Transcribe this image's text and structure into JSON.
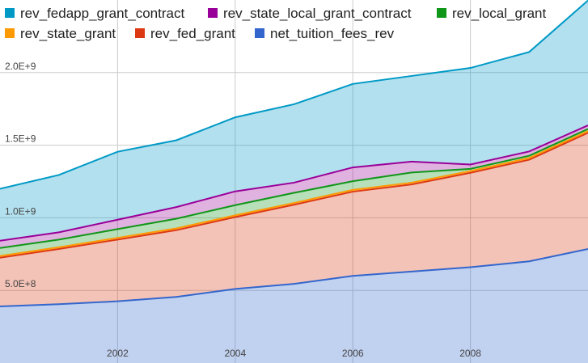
{
  "chart_data": {
    "type": "area",
    "stacked": true,
    "x": [
      2000,
      2001,
      2002,
      2003,
      2004,
      2005,
      2006,
      2007,
      2008,
      2009,
      2010
    ],
    "xticks": [
      "2002",
      "2004",
      "2006",
      "2008"
    ],
    "yticks": [
      "5.0E+8",
      "1.0E+9",
      "1.5E+9",
      "2.0E+9"
    ],
    "ylim": [
      0,
      2500000000
    ],
    "grid": true,
    "legend_position": "top",
    "series": [
      {
        "name": "net_tuition_fees_rev",
        "color": "#3366cc",
        "values": [
          390000000,
          405000000,
          425000000,
          455000000,
          510000000,
          545000000,
          600000000,
          630000000,
          660000000,
          700000000,
          785000000
        ]
      },
      {
        "name": "rev_fed_grant",
        "color": "#dc3912",
        "values": [
          335000000,
          380000000,
          425000000,
          460000000,
          495000000,
          545000000,
          580000000,
          600000000,
          650000000,
          700000000,
          800000000
        ]
      },
      {
        "name": "rev_state_grant",
        "color": "#ff9900",
        "values": [
          12000000,
          12000000,
          12000000,
          12000000,
          12000000,
          12000000,
          12000000,
          12000000,
          12000000,
          12000000,
          12000000
        ]
      },
      {
        "name": "rev_local_grant",
        "color": "#109618",
        "values": [
          55000000,
          53000000,
          60000000,
          67000000,
          70000000,
          70000000,
          60000000,
          70000000,
          15000000,
          15000000,
          15000000
        ]
      },
      {
        "name": "rev_state_local_grant_contract",
        "color": "#990099",
        "values": [
          50000000,
          50000000,
          65000000,
          80000000,
          95000000,
          70000000,
          95000000,
          75000000,
          30000000,
          30000000,
          25000000
        ]
      },
      {
        "name": "rev_fedapp_grant_contract",
        "color": "#0099c6",
        "values": [
          358000000,
          395000000,
          468000000,
          460000000,
          510000000,
          540000000,
          575000000,
          590000000,
          665000000,
          685000000,
          860000000
        ]
      }
    ]
  }
}
